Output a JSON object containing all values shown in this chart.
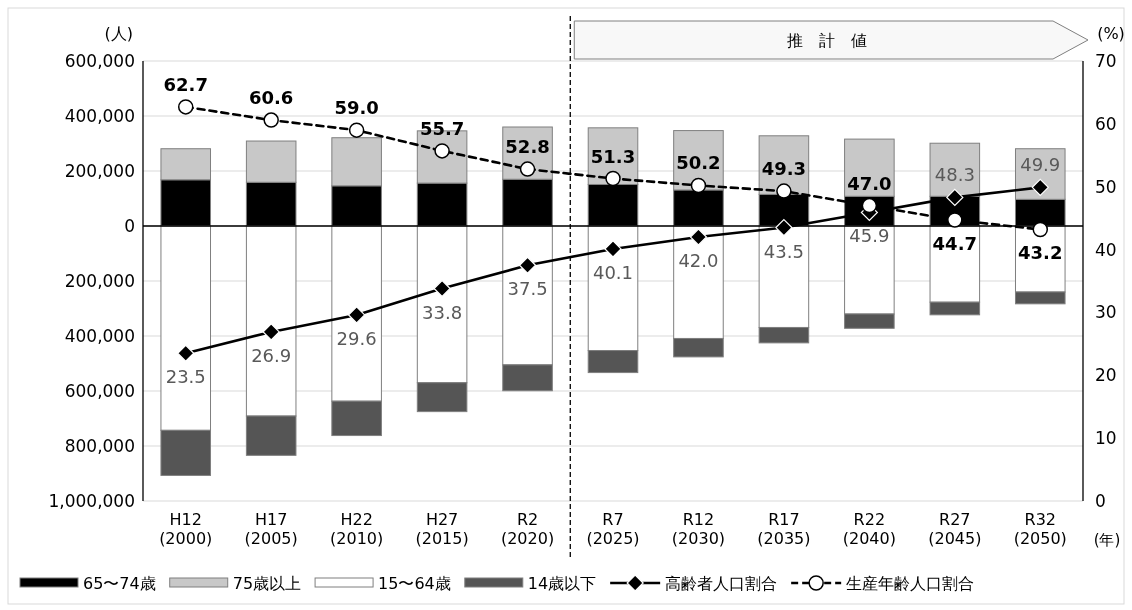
{
  "chart_data": {
    "type": "bar",
    "stacked": true,
    "categories": [
      "H12\n(2000)",
      "H17\n(2005)",
      "H22\n(2010)",
      "H27\n(2015)",
      "R2\n(2020)",
      "R7\n(2025)",
      "R12\n(2030)",
      "R17\n(2035)",
      "R22\n(2040)",
      "R27\n(2045)",
      "R32\n(2050)"
    ],
    "ylabel": "(人)",
    "y2label": "(%)",
    "xlabel": "(年)",
    "ylim": [
      -1000000,
      600000
    ],
    "yticks": [
      {
        "value": -1000000,
        "label": "1,000,000"
      },
      {
        "value": -800000,
        "label": "800,000"
      },
      {
        "value": -600000,
        "label": "600,000"
      },
      {
        "value": -400000,
        "label": "400,000"
      },
      {
        "value": -200000,
        "label": "200,000"
      },
      {
        "value": 0,
        "label": "0"
      },
      {
        "value": 200000,
        "label": "200,000"
      },
      {
        "value": 400000,
        "label": "400,000"
      },
      {
        "value": 600000,
        "label": "600,000"
      }
    ],
    "y2lim": [
      0,
      70
    ],
    "y2ticks": [
      0,
      10,
      20,
      30,
      40,
      50,
      60,
      70
    ],
    "grid": "y",
    "legend": "bottom",
    "annotations": [
      "推　計　値"
    ],
    "series": [
      {
        "name": "65〜74歳",
        "color": "#000000",
        "values": [
          168000,
          159000,
          146000,
          156000,
          170000,
          151000,
          131000,
          115000,
          108000,
          108000,
          97000
        ]
      },
      {
        "name": "75歳以上",
        "color": "#c8c8c8",
        "values": [
          113000,
          150000,
          175000,
          190000,
          190000,
          206000,
          216000,
          213000,
          208000,
          193000,
          184000
        ]
      },
      {
        "name": "15〜64歳",
        "color": "#ffffff",
        "values": [
          -743000,
          -691000,
          -637000,
          -570000,
          -505000,
          -453000,
          -409000,
          -369000,
          -320000,
          -277000,
          -240000
        ]
      },
      {
        "name": "14歳以下",
        "color": "#555555",
        "values": [
          -164000,
          -143000,
          -125000,
          -105000,
          -94000,
          -80000,
          -67000,
          -56000,
          -52000,
          -46000,
          -43000
        ]
      },
      {
        "name": "高齢者人口割合",
        "type": "line",
        "axis": "y2",
        "color": "#000000",
        "marker": "diamond",
        "line_style": "solid",
        "values": [
          23.5,
          26.9,
          29.6,
          33.8,
          37.5,
          40.1,
          42.0,
          43.5,
          45.9,
          48.3,
          49.9
        ],
        "value_labels": [
          "23.5",
          "26.9",
          "29.6",
          "33.8",
          "37.5",
          "40.1",
          "42.0",
          "43.5",
          "45.9",
          "48.3",
          "49.9"
        ]
      },
      {
        "name": "生産年齢人口割合",
        "type": "line",
        "axis": "y2",
        "color": "#000000",
        "marker": "circle",
        "line_style": "dashed",
        "values": [
          62.7,
          60.6,
          59.0,
          55.7,
          52.8,
          51.3,
          50.2,
          49.3,
          47.0,
          44.7,
          43.2
        ],
        "value_labels": [
          "62.7",
          "60.6",
          "59.0",
          "55.7",
          "52.8",
          "51.3",
          "50.2",
          "49.3",
          "47.0",
          "44.7",
          "43.2"
        ]
      }
    ]
  }
}
